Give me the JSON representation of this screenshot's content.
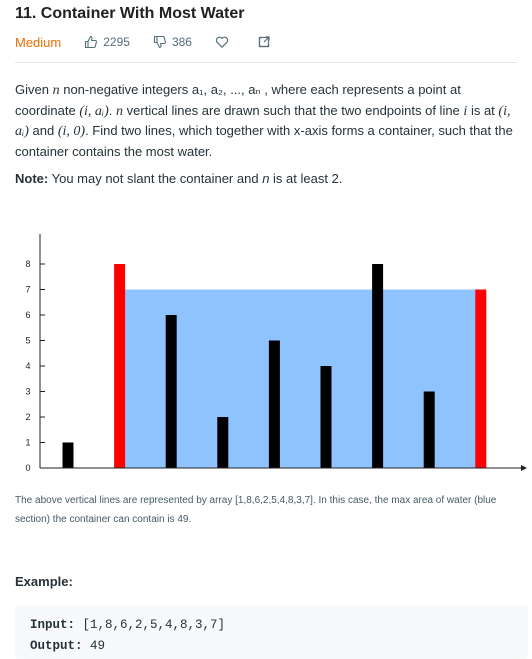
{
  "problem": {
    "title": "11. Container With Most Water",
    "difficulty": "Medium",
    "likes": "2295",
    "dislikes": "386"
  },
  "description": {
    "p1": "Given",
    "n": "n",
    "p2": "non-negative integers a₁, a₂, ..., aₙ , where each represents a point at coordinate",
    "coord": "(i, aᵢ)",
    "p3": ".",
    "n2": "n",
    "p4": "vertical lines are drawn such that the two endpoints of line",
    "i": "i",
    "p5": "is at",
    "pt1": "(i, aᵢ)",
    "p6": "and",
    "pt2": "(i, 0)",
    "p7": ". Find two lines, which together with x-axis forms a container, such that the container contains the most water."
  },
  "note": {
    "label": "Note:",
    "text1": "You may not slant the container and",
    "n": "n",
    "text2": "is at least 2."
  },
  "chart_data": {
    "type": "bar",
    "values": [
      1,
      8,
      6,
      2,
      5,
      4,
      8,
      3,
      7
    ],
    "highlight_indices": [
      1,
      8
    ],
    "water_level": 7,
    "ylim": [
      0,
      9
    ],
    "yticks": [
      "0",
      "1",
      "2",
      "3",
      "4",
      "5",
      "6",
      "7",
      "8"
    ],
    "colors": {
      "bar": "#000000",
      "highlight": "#ff0000",
      "water": "#8fc3fd"
    }
  },
  "caption": "The above vertical lines are represented by array [1,8,6,2,5,4,8,3,7]. In this case, the max area of water (blue section) the container can contain is 49.",
  "example": {
    "title": "Example:",
    "input_label": "Input:",
    "input_value": "[1,8,6,2,5,4,8,3,7]",
    "output_label": "Output:",
    "output_value": "49"
  }
}
